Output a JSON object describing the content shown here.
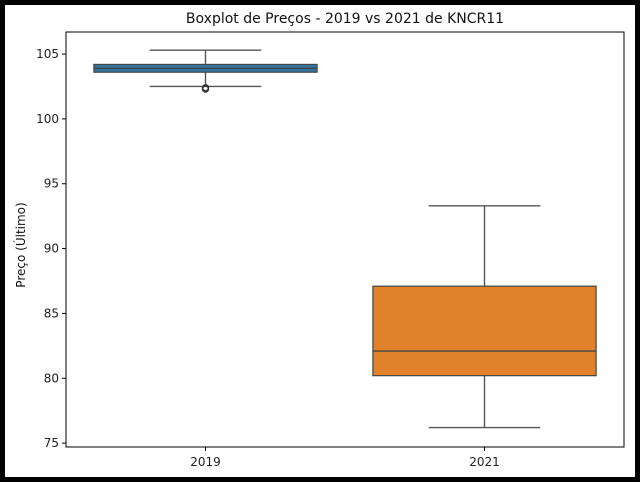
{
  "chart_data": {
    "type": "box",
    "title": "Boxplot de Preços - 2019 vs 2021 de KNCR11",
    "xlabel": "",
    "ylabel": "Preço (Último)",
    "categories": [
      "2019",
      "2021"
    ],
    "ylim": [
      74.7,
      106.7
    ],
    "yticks": [
      75,
      80,
      85,
      90,
      95,
      100,
      105
    ],
    "ytick_labels": [
      "75",
      "80",
      "85",
      "90",
      "95",
      "100",
      "105"
    ],
    "grid": false,
    "boxes": [
      {
        "category": "2019",
        "whisker_low": 102.5,
        "q1": 103.6,
        "median": 103.9,
        "q3": 104.2,
        "whisker_high": 105.3,
        "outliers": [
          102.3,
          102.4
        ],
        "color": "#3274a1"
      },
      {
        "category": "2021",
        "whisker_low": 76.2,
        "q1": 80.2,
        "median": 82.1,
        "q3": 87.1,
        "whisker_high": 93.3,
        "outliers": [],
        "color": "#e1812c"
      }
    ]
  }
}
